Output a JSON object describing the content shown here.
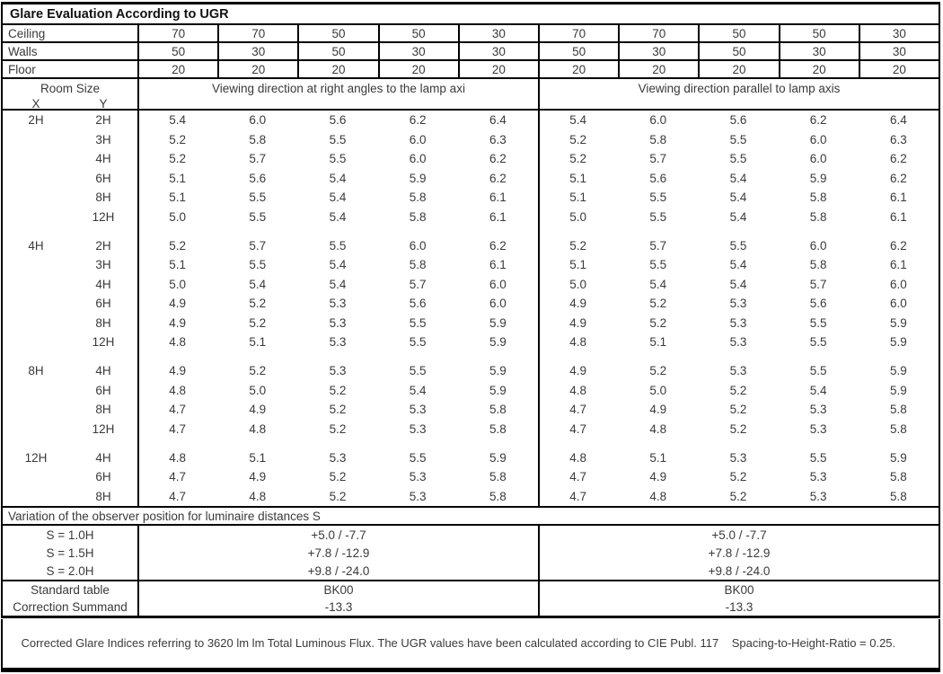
{
  "title": "Glare Evaluation According to UGR",
  "colors": {
    "border": "#000000",
    "text": "#3a3a3a",
    "title_text": "#111111",
    "background": "#ffffff"
  },
  "surface_rows": [
    {
      "label": "Ceiling",
      "values": [
        "70",
        "70",
        "50",
        "50",
        "30",
        "70",
        "70",
        "50",
        "50",
        "30"
      ]
    },
    {
      "label": "Walls",
      "values": [
        "50",
        "30",
        "50",
        "30",
        "30",
        "50",
        "30",
        "50",
        "30",
        "30"
      ]
    },
    {
      "label": "Floor",
      "values": [
        "20",
        "20",
        "20",
        "20",
        "20",
        "20",
        "20",
        "20",
        "20",
        "20"
      ]
    }
  ],
  "header": {
    "room_size_label": "Room Size",
    "x_label": "X",
    "y_label": "Y",
    "left_direction_label": "Viewing direction at right angles to the lamp axi",
    "right_direction_label": "Viewing direction parallel to lamp axis"
  },
  "body": {
    "blocks": [
      {
        "x": "2H",
        "rows": [
          {
            "y": "2H",
            "left": [
              "5.4",
              "6.0",
              "5.6",
              "6.2",
              "6.4"
            ],
            "right": [
              "5.4",
              "6.0",
              "5.6",
              "6.2",
              "6.4"
            ]
          },
          {
            "y": "3H",
            "left": [
              "5.2",
              "5.8",
              "5.5",
              "6.0",
              "6.3"
            ],
            "right": [
              "5.2",
              "5.8",
              "5.5",
              "6.0",
              "6.3"
            ]
          },
          {
            "y": "4H",
            "left": [
              "5.2",
              "5.7",
              "5.5",
              "6.0",
              "6.2"
            ],
            "right": [
              "5.2",
              "5.7",
              "5.5",
              "6.0",
              "6.2"
            ]
          },
          {
            "y": "6H",
            "left": [
              "5.1",
              "5.6",
              "5.4",
              "5.9",
              "6.2"
            ],
            "right": [
              "5.1",
              "5.6",
              "5.4",
              "5.9",
              "6.2"
            ]
          },
          {
            "y": "8H",
            "left": [
              "5.1",
              "5.5",
              "5.4",
              "5.8",
              "6.1"
            ],
            "right": [
              "5.1",
              "5.5",
              "5.4",
              "5.8",
              "6.1"
            ]
          },
          {
            "y": "12H",
            "left": [
              "5.0",
              "5.5",
              "5.4",
              "5.8",
              "6.1"
            ],
            "right": [
              "5.0",
              "5.5",
              "5.4",
              "5.8",
              "6.1"
            ]
          }
        ]
      },
      {
        "x": "4H",
        "rows": [
          {
            "y": "2H",
            "left": [
              "5.2",
              "5.7",
              "5.5",
              "6.0",
              "6.2"
            ],
            "right": [
              "5.2",
              "5.7",
              "5.5",
              "6.0",
              "6.2"
            ]
          },
          {
            "y": "3H",
            "left": [
              "5.1",
              "5.5",
              "5.4",
              "5.8",
              "6.1"
            ],
            "right": [
              "5.1",
              "5.5",
              "5.4",
              "5.8",
              "6.1"
            ]
          },
          {
            "y": "4H",
            "left": [
              "5.0",
              "5.4",
              "5.4",
              "5.7",
              "6.0"
            ],
            "right": [
              "5.0",
              "5.4",
              "5.4",
              "5.7",
              "6.0"
            ]
          },
          {
            "y": "6H",
            "left": [
              "4.9",
              "5.2",
              "5.3",
              "5.6",
              "6.0"
            ],
            "right": [
              "4.9",
              "5.2",
              "5.3",
              "5.6",
              "6.0"
            ]
          },
          {
            "y": "8H",
            "left": [
              "4.9",
              "5.2",
              "5.3",
              "5.5",
              "5.9"
            ],
            "right": [
              "4.9",
              "5.2",
              "5.3",
              "5.5",
              "5.9"
            ]
          },
          {
            "y": "12H",
            "left": [
              "4.8",
              "5.1",
              "5.3",
              "5.5",
              "5.9"
            ],
            "right": [
              "4.8",
              "5.1",
              "5.3",
              "5.5",
              "5.9"
            ]
          }
        ]
      },
      {
        "x": "8H",
        "rows": [
          {
            "y": "4H",
            "left": [
              "4.9",
              "5.2",
              "5.3",
              "5.5",
              "5.9"
            ],
            "right": [
              "4.9",
              "5.2",
              "5.3",
              "5.5",
              "5.9"
            ]
          },
          {
            "y": "6H",
            "left": [
              "4.8",
              "5.0",
              "5.2",
              "5.4",
              "5.9"
            ],
            "right": [
              "4.8",
              "5.0",
              "5.2",
              "5.4",
              "5.9"
            ]
          },
          {
            "y": "8H",
            "left": [
              "4.7",
              "4.9",
              "5.2",
              "5.3",
              "5.8"
            ],
            "right": [
              "4.7",
              "4.9",
              "5.2",
              "5.3",
              "5.8"
            ]
          },
          {
            "y": "12H",
            "left": [
              "4.7",
              "4.8",
              "5.2",
              "5.3",
              "5.8"
            ],
            "right": [
              "4.7",
              "4.8",
              "5.2",
              "5.3",
              "5.8"
            ]
          }
        ]
      },
      {
        "x": "12H",
        "rows": [
          {
            "y": "4H",
            "left": [
              "4.8",
              "5.1",
              "5.3",
              "5.5",
              "5.9"
            ],
            "right": [
              "4.8",
              "5.1",
              "5.3",
              "5.5",
              "5.9"
            ]
          },
          {
            "y": "6H",
            "left": [
              "4.7",
              "4.9",
              "5.2",
              "5.3",
              "5.8"
            ],
            "right": [
              "4.7",
              "4.9",
              "5.2",
              "5.3",
              "5.8"
            ]
          },
          {
            "y": "8H",
            "left": [
              "4.7",
              "4.8",
              "5.2",
              "5.3",
              "5.8"
            ],
            "right": [
              "4.7",
              "4.8",
              "5.2",
              "5.3",
              "5.8"
            ]
          }
        ]
      }
    ]
  },
  "variation": {
    "label": "Variation of the observer position for luminaire distances S",
    "rows": [
      {
        "label": "S = 1.0H",
        "left": "+5.0 / -7.7",
        "right": "+5.0 / -7.7"
      },
      {
        "label": "S = 1.5H",
        "left": "+7.8 / -12.9",
        "right": "+7.8 / -12.9"
      },
      {
        "label": "S = 2.0H",
        "left": "+9.8 / -24.0",
        "right": "+9.8 / -24.0"
      }
    ]
  },
  "summary": {
    "rows": [
      {
        "label": "Standard table",
        "left": "BK00",
        "right": "BK00"
      },
      {
        "label": "Correction Summand",
        "left": "-13.3",
        "right": "-13.3"
      }
    ]
  },
  "footer": {
    "text": "Corrected Glare Indices referring to 3620 lm lm Total Luminous Flux. The UGR values have been calculated according to CIE Publ. 117    Spacing-to-Height-Ratio = 0.25."
  }
}
